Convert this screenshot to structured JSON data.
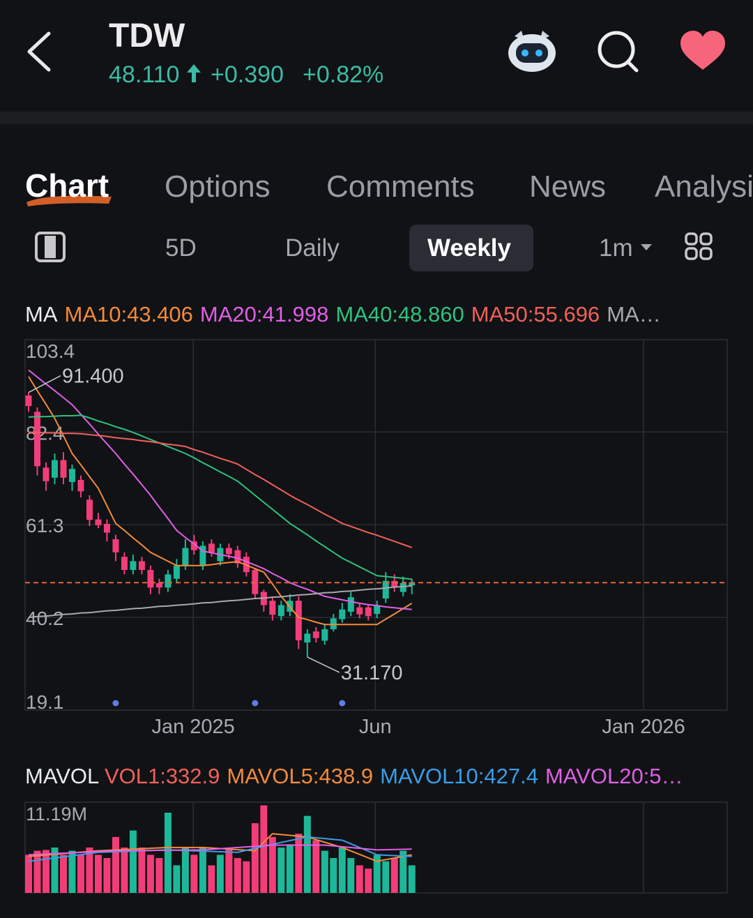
{
  "header": {
    "symbol": "TDW",
    "price": "48.110",
    "change": "+0.390",
    "change_pct": "+0.82%"
  },
  "tabs": [
    "Chart",
    "Options",
    "Comments",
    "News",
    "Analysis"
  ],
  "periods": [
    "5D",
    "Daily",
    "Weekly",
    "1m"
  ],
  "chart_data": [
    {
      "type": "candlestick",
      "legend_title": "MA",
      "up_color": "#1db899",
      "down_color": "#f23d78",
      "open": [
        90.7,
        87,
        74.3,
        72,
        76,
        71,
        71.5,
        67,
        62.5,
        61.5,
        58,
        54,
        51,
        53,
        51,
        48,
        47,
        49,
        52,
        57.5,
        52,
        57,
        53,
        56,
        55.5,
        54,
        51,
        46,
        44,
        40.5,
        41.5,
        44,
        34.5,
        37,
        34.9,
        37.5,
        39.8,
        41.5,
        42.5,
        42.5,
        41,
        44.5,
        48.5,
        46,
        47.5
      ],
      "high": [
        91.4,
        88,
        75.5,
        77.5,
        77.8,
        75,
        72.5,
        68,
        64,
        62.5,
        59,
        55,
        54.5,
        54,
        52,
        49,
        51,
        53.5,
        58,
        59,
        57.5,
        58,
        57,
        57,
        56.5,
        55,
        51.5,
        46.5,
        45,
        44,
        45.5,
        45,
        37.5,
        38,
        38.5,
        41,
        43.5,
        46,
        43.5,
        43,
        44,
        50.5,
        50,
        49.5,
        49
      ],
      "low": [
        87,
        72.5,
        69,
        70.5,
        70.5,
        69,
        67.5,
        61,
        60.5,
        57.5,
        53,
        50,
        50,
        50,
        45.5,
        45.5,
        46,
        48,
        51,
        54.5,
        51,
        54,
        52,
        53.5,
        51.5,
        49.5,
        44.5,
        41.5,
        39.5,
        39.5,
        40.5,
        33,
        31.17,
        34.5,
        34,
        37,
        39,
        40.5,
        40,
        39.5,
        40,
        43.5,
        46,
        45,
        45.5
      ],
      "close": [
        88.3,
        74.6,
        71.2,
        76,
        72,
        74,
        68.9,
        62.4,
        61.2,
        59.5,
        55,
        51,
        53,
        51,
        47,
        47,
        50,
        52,
        56,
        55.5,
        56.5,
        55,
        56,
        54.6,
        52.5,
        50.5,
        45.5,
        43,
        40.8,
        43,
        44,
        35,
        36.5,
        35.5,
        37.5,
        40,
        42,
        44.8,
        40.9,
        40.5,
        43,
        48.5,
        47.2,
        48,
        48.11
      ],
      "series": [
        {
          "name": "MA10:43.406",
          "color": "#f58a3a",
          "values": [
            95,
            91.8,
            88.7,
            85.5,
            81.5,
            77.5,
            74.9,
            72.2,
            69.6,
            65.6,
            61.6,
            60,
            58.3,
            56.7,
            55,
            54,
            53,
            52,
            52,
            52,
            52,
            52.2,
            52.5,
            52.7,
            52.9,
            52.1,
            51.3,
            50.5,
            47.8,
            45,
            42.6,
            40.2,
            39.7,
            39.1,
            38.6,
            38.6,
            38.6,
            38.6,
            38.6,
            38.6,
            38.6,
            39.8,
            41,
            42.2,
            43.4
          ]
        },
        {
          "name": "MA20:41.998",
          "color": "#e25fe6",
          "values": [
            96.5,
            94.9,
            93.3,
            91.8,
            90.2,
            88.6,
            86.4,
            84.2,
            81.9,
            79.7,
            77.5,
            75.1,
            72.8,
            70.4,
            68,
            65.3,
            62.7,
            60,
            58.4,
            56.9,
            55.3,
            54.9,
            54.5,
            54.1,
            53.7,
            52.9,
            52.1,
            51.3,
            50.2,
            49.2,
            48.1,
            47.3,
            46.6,
            45.8,
            45,
            44.6,
            44.2,
            43.8,
            43.4,
            43.1,
            42.9,
            42.6,
            42.4,
            42.2,
            42.0
          ]
        },
        {
          "name": "MA40:48.860",
          "color": "#2ec27e",
          "values": [
            85.8,
            85.9,
            85.9,
            86,
            86.1,
            86.1,
            86.2,
            85.6,
            84.9,
            84.3,
            83.6,
            83,
            82.3,
            81.5,
            80.7,
            79.9,
            79.1,
            78.3,
            77.5,
            76.5,
            75.4,
            74.4,
            73.3,
            72.3,
            71.2,
            69.6,
            68,
            66.4,
            64.8,
            63.2,
            61.6,
            60.3,
            59,
            57.6,
            56.3,
            55,
            53.7,
            52.7,
            51.7,
            50.7,
            49.7,
            49.5,
            49.3,
            49.1,
            48.9
          ]
        },
        {
          "name": "MA50:55.696",
          "color": "#f2605a",
          "values": [
            82.3,
            82.3,
            82.2,
            82.2,
            82.1,
            82.1,
            82,
            81.8,
            81.6,
            81.4,
            81.1,
            80.9,
            80.7,
            80.4,
            80.2,
            79.9,
            79.6,
            79.4,
            79.1,
            78.4,
            77.8,
            77.1,
            76.4,
            75.8,
            75.1,
            73.9,
            72.7,
            71.6,
            70.4,
            69.2,
            68,
            66.9,
            65.9,
            64.8,
            63.7,
            62.7,
            61.6,
            60.9,
            60.2,
            59.5,
            58.9,
            58.2,
            57.5,
            56.8,
            56.1
          ]
        },
        {
          "name": "MA…",
          "color": "#a7a9ad",
          "values": [
            40.2,
            40.4,
            40.5,
            40.7,
            40.9,
            41.0,
            41.2,
            41.3,
            41.5,
            41.7,
            41.8,
            42.0,
            42.2,
            42.3,
            42.5,
            42.7,
            42.8,
            43.0,
            43.1,
            43.3,
            43.5,
            43.6,
            43.8,
            44.0,
            44.1,
            44.3,
            44.5,
            44.6,
            44.8,
            44.9,
            45.1,
            45.3,
            45.4,
            45.6,
            45.8,
            45.9,
            46.1,
            46.2,
            46.4,
            46.6,
            46.7,
            46.9,
            47.1,
            47.2,
            47.4
          ]
        }
      ],
      "annotations": [
        {
          "x": 0,
          "value": 91.4,
          "label": "91.400"
        },
        {
          "x": 32,
          "value": 31.17,
          "label": "31.170"
        }
      ],
      "price_line": 48.11,
      "price_line_color": "#e8643a",
      "events_x": [
        10,
        26,
        36
      ],
      "event_color": "#5b7fe6",
      "xlim": [
        -0.4,
        80.2
      ],
      "xticks": [
        {
          "value": 18.9,
          "label": "Jan 2025"
        },
        {
          "value": 39.8,
          "label": "Jun"
        },
        {
          "value": 70.6,
          "label": "Jan 2026"
        }
      ],
      "ylim": [
        19.1,
        103.4
      ],
      "yticks": [
        103.4,
        82.4,
        61.3,
        40.2,
        19.1
      ],
      "grid": true
    },
    {
      "type": "bar",
      "legend_title": "MAVOL",
      "bar_name": "VOL1:332.9",
      "values": [
        4.7,
        5.2,
        5.3,
        5.6,
        4.7,
        5.2,
        4.7,
        5.6,
        4.7,
        4.3,
        6.9,
        5.6,
        7.7,
        5.6,
        4.7,
        4.3,
        9.9,
        3.4,
        5.6,
        4.7,
        5.6,
        3.4,
        4.7,
        5.6,
        4.3,
        3.9,
        8.6,
        10.8,
        6.9,
        5.6,
        6.0,
        7.3,
        9.5,
        6.5,
        5.2,
        4.3,
        5.6,
        4.3,
        3.4,
        3.0,
        4.7,
        3.9,
        4.3,
        5.2,
        3.4
      ],
      "series": [
        {
          "name": "MAVOL5:438.9",
          "color": "#f58a3a",
          "x": [
            0,
            8,
            16,
            20,
            26,
            28,
            32,
            36,
            40,
            44
          ],
          "values": [
            4.5,
            5.2,
            5.6,
            5.6,
            5.2,
            7.3,
            6.9,
            5.6,
            3.9,
            4.7
          ]
        },
        {
          "name": "MAVOL10:427.4",
          "color": "#3a9ee8",
          "x": [
            0,
            8,
            16,
            24,
            28,
            32,
            36,
            40,
            44
          ],
          "values": [
            3.9,
            5.0,
            5.3,
            5.0,
            6.0,
            6.9,
            6.5,
            4.7,
            4.5
          ]
        },
        {
          "name": "MAVOL20:5…",
          "color": "#e25fe6",
          "x": [
            0,
            10,
            20,
            28,
            34,
            40,
            44
          ],
          "values": [
            4.7,
            5.2,
            5.3,
            5.9,
            5.9,
            5.3,
            5.4
          ]
        }
      ],
      "ylim": [
        0,
        11.19
      ],
      "yticks": [
        {
          "value": 11.19,
          "label": "11.19M"
        }
      ]
    }
  ]
}
